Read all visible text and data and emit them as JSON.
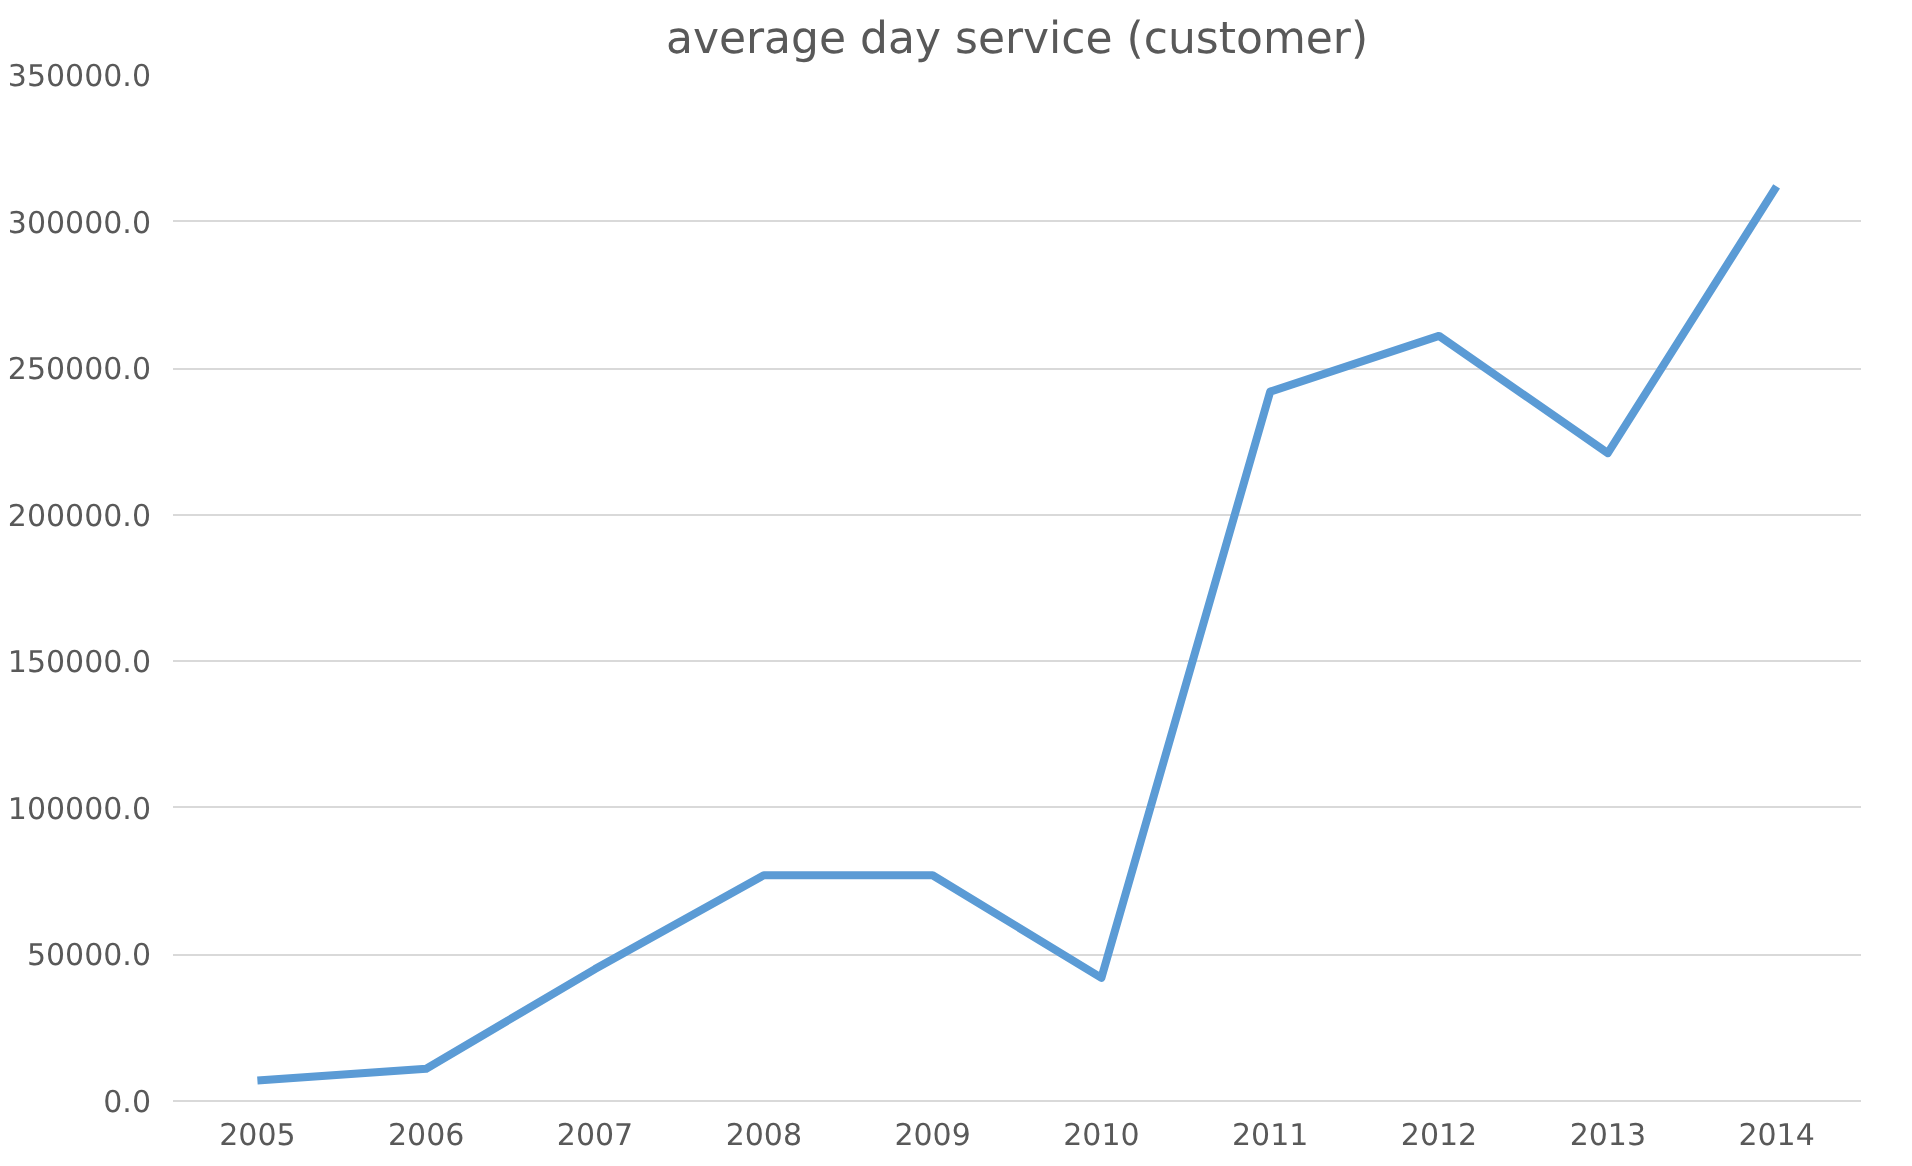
{
  "chart_data": {
    "type": "line",
    "title": "average day service (customer)",
    "categories": [
      "2005",
      "2006",
      "2007",
      "2008",
      "2009",
      "2010",
      "2011",
      "2012",
      "2013",
      "2014"
    ],
    "series": [
      {
        "color": "#5b9bd5",
        "values": [
          7000,
          11000,
          45000,
          77000,
          77000,
          42000,
          242000,
          261000,
          221000,
          312000
        ]
      }
    ],
    "ylim": [
      0,
      350000
    ],
    "yticks": [
      {
        "value": 0,
        "label": "0.0"
      },
      {
        "value": 50000,
        "label": "50000.0"
      },
      {
        "value": 100000,
        "label": "100000.0"
      },
      {
        "value": 150000,
        "label": "150000.0"
      },
      {
        "value": 200000,
        "label": "200000.0"
      },
      {
        "value": 250000,
        "label": "250000.0"
      },
      {
        "value": 300000,
        "label": "300000.0"
      },
      {
        "value": 350000,
        "label": "350000.0"
      }
    ],
    "grid": "y",
    "marker": "none",
    "line_style": "solid"
  }
}
